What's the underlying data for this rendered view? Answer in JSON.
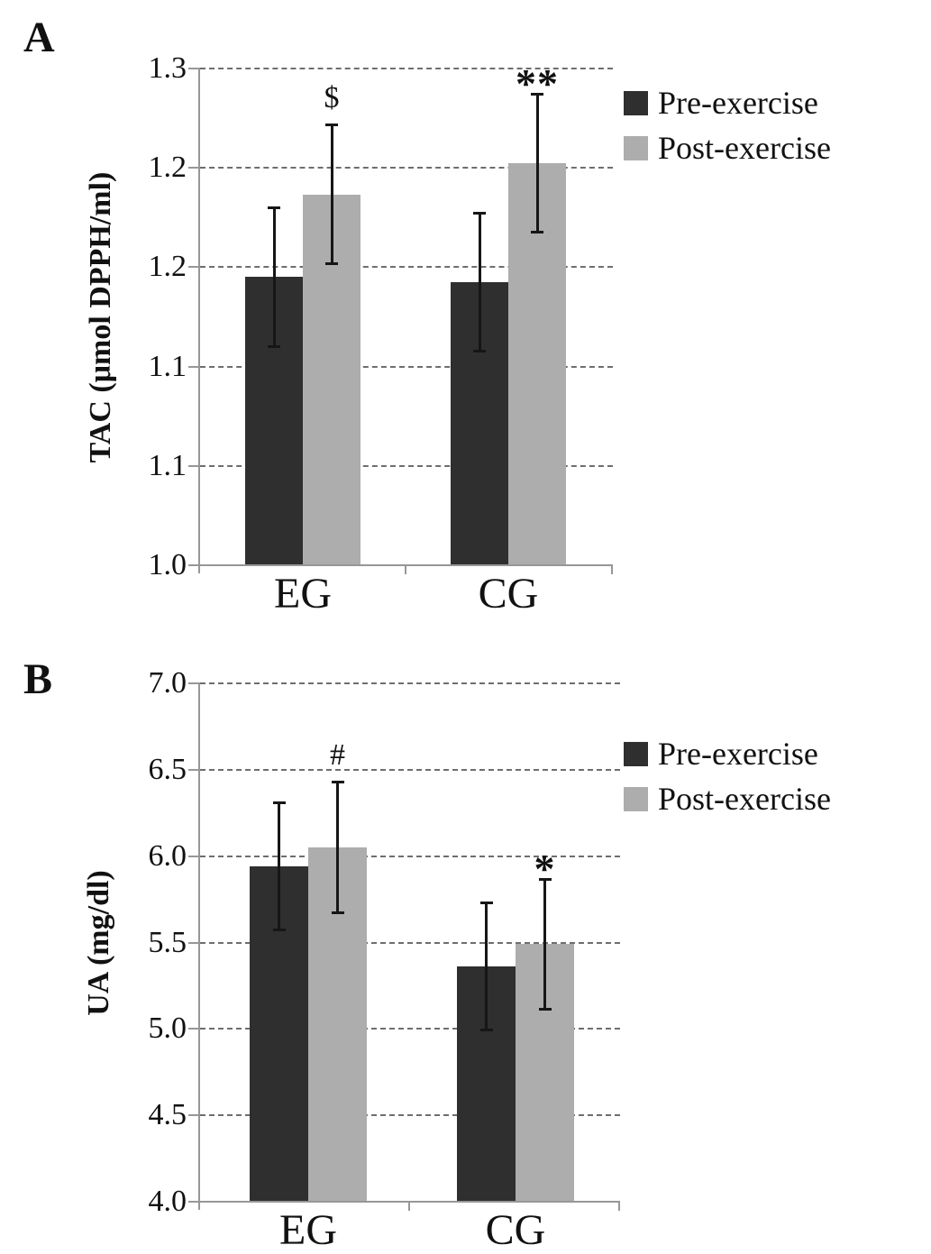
{
  "figure": {
    "background": "#ffffff",
    "panel_letters": [
      "A",
      "B"
    ]
  },
  "style": {
    "pre_bar_color": "#2f2f2f",
    "post_bar_color": "#adadad",
    "axis_color": "#979797",
    "gridline_color": "#6e6e6e",
    "error_bar_color": "#161616",
    "text_color": "#111111"
  },
  "chart_data": [
    {
      "panel_label": "A",
      "type": "bar",
      "title": "",
      "xlabel": "",
      "ylabel": "TAC (μmol DPPH/ml)",
      "categories": [
        "EG",
        "CG"
      ],
      "series": [
        {
          "name": "Pre-exercise",
          "color": "#2f2f2f",
          "values": [
            1.174,
            1.171
          ],
          "errors": [
            0.042,
            0.042
          ]
        },
        {
          "name": "Post-exercise",
          "color": "#adadad",
          "values": [
            1.224,
            1.243
          ],
          "errors": [
            0.042,
            0.042
          ]
        }
      ],
      "annotations": [
        {
          "text": "$",
          "category": "EG",
          "series": "Post-exercise"
        },
        {
          "text": "**",
          "category": "CG",
          "series": "Post-exercise"
        }
      ],
      "ylim": [
        1.0,
        1.3
      ],
      "ytick_values": [
        1.3,
        1.24,
        1.18,
        1.12,
        1.06,
        1.0
      ],
      "ytick_labels": [
        "1.3",
        "1.2",
        "1.2",
        "1.1",
        "1.1",
        "1.0"
      ],
      "grid": "horizontal dashed",
      "legend_position": "right of plot, upper",
      "legend": [
        "Pre-exercise",
        "Post-exercise"
      ]
    },
    {
      "panel_label": "B",
      "type": "bar",
      "title": "",
      "xlabel": "",
      "ylabel": "UA (mg/dl)",
      "categories": [
        "EG",
        "CG"
      ],
      "series": [
        {
          "name": "Pre-exercise",
          "color": "#2f2f2f",
          "values": [
            5.94,
            5.36
          ],
          "errors": [
            0.37,
            0.37
          ]
        },
        {
          "name": "Post-exercise",
          "color": "#adadad",
          "values": [
            6.05,
            5.49
          ],
          "errors": [
            0.38,
            0.38
          ]
        }
      ],
      "annotations": [
        {
          "text": "#",
          "category": "EG",
          "series": "Post-exercise"
        },
        {
          "text": "*",
          "category": "CG",
          "series": "Post-exercise"
        }
      ],
      "ylim": [
        4.0,
        7.0
      ],
      "ytick_values": [
        7.0,
        6.5,
        6.0,
        5.5,
        5.0,
        4.5,
        4.0
      ],
      "ytick_labels": [
        "7.0",
        "6.5",
        "6.0",
        "5.5",
        "5.0",
        "4.5",
        "4.0"
      ],
      "grid": "horizontal dashed",
      "legend_position": "right of plot, upper",
      "legend": [
        "Pre-exercise",
        "Post-exercise"
      ]
    }
  ]
}
